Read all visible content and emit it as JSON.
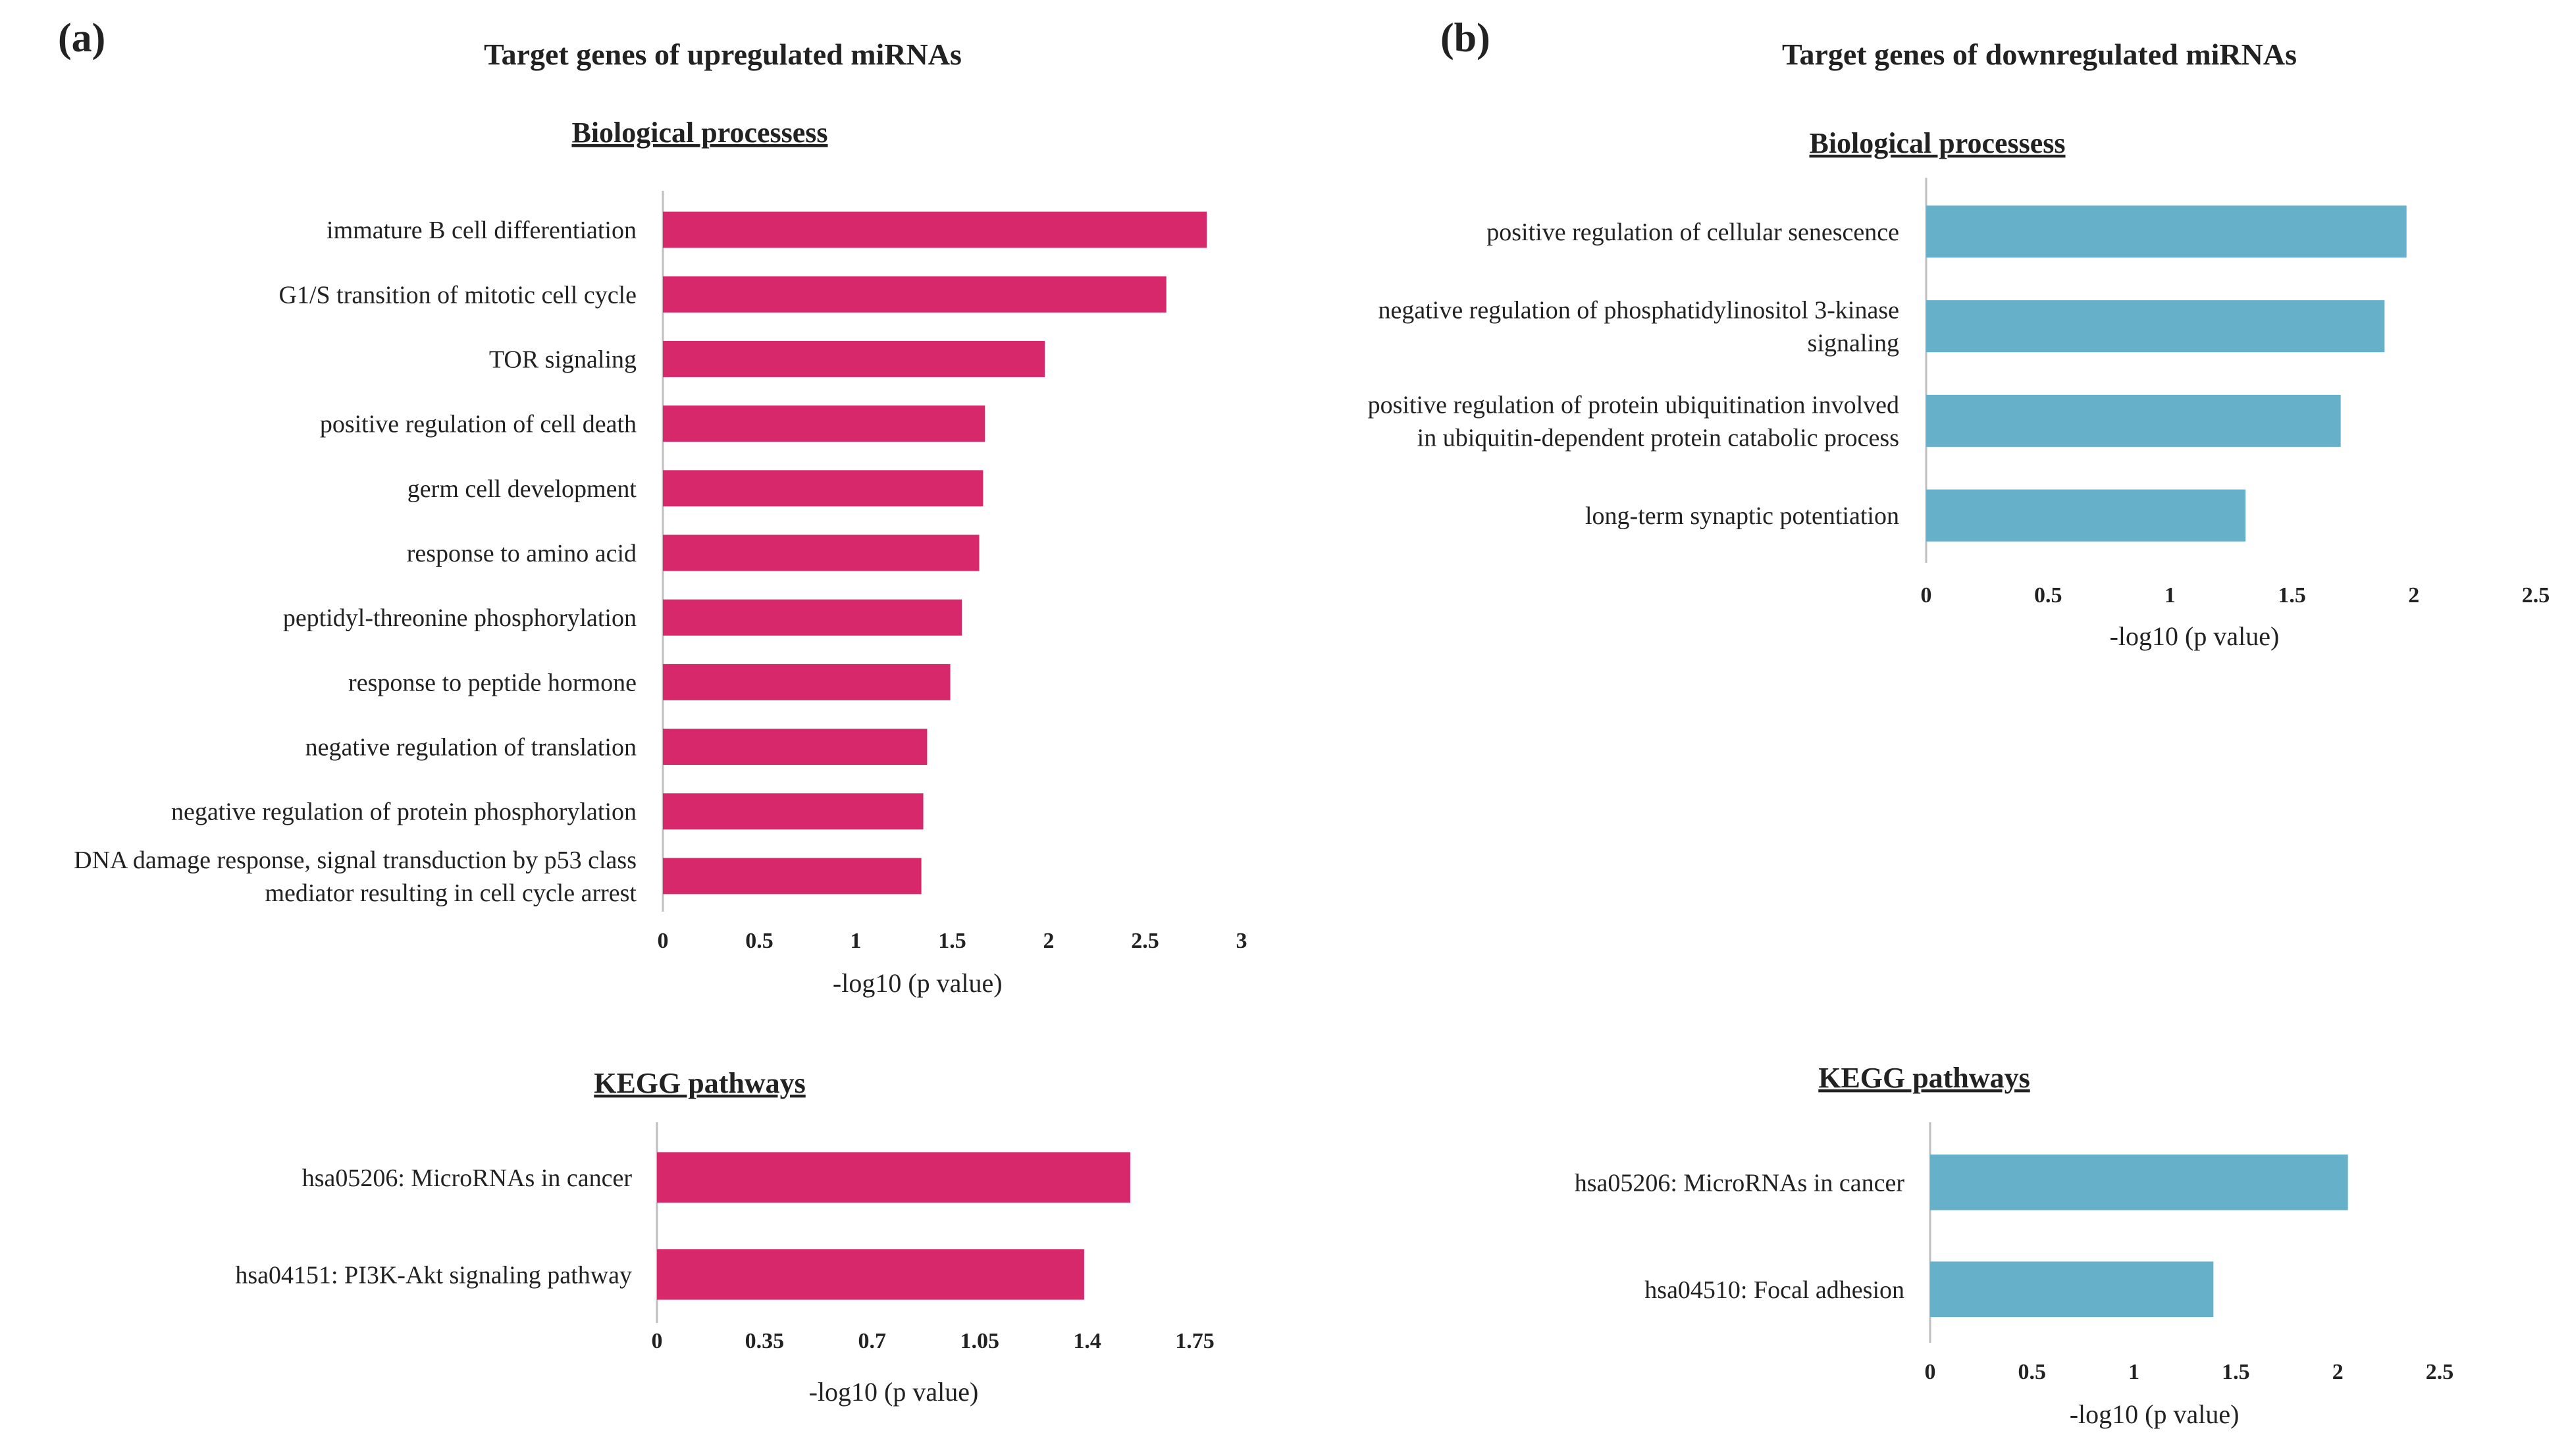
{
  "panels": [
    {
      "letter": "(a)",
      "title": "Target genes of upregulated miRNAs"
    },
    {
      "letter": "(b)",
      "title": "Target genes of downregulated miRNAs"
    }
  ],
  "colors": {
    "up": "#d6286b",
    "down": "#66b0c9",
    "axis": "#bfbfbf",
    "text": "#222222"
  },
  "chart_data": [
    {
      "id": "a_bp",
      "type": "bar",
      "orientation": "horizontal",
      "panel": "(a)",
      "title": "Biological processess",
      "xlabel": "-log10 (p value)",
      "ylabel": "",
      "xlim": [
        0,
        3
      ],
      "ticks": [
        0,
        0.5,
        1,
        1.5,
        2,
        2.5,
        3
      ],
      "tick_labels": [
        "0",
        "0.5",
        "1",
        "1.5",
        "2",
        "2.5",
        "3"
      ],
      "color": "#d6286b",
      "categories": [
        [
          "immature B cell differentiation"
        ],
        [
          "G1/S transition of mitotic cell cycle"
        ],
        [
          "TOR signaling"
        ],
        [
          "positive regulation of cell death"
        ],
        [
          "germ cell development"
        ],
        [
          "response to amino acid"
        ],
        [
          "peptidyl-threonine phosphorylation"
        ],
        [
          "response to peptide hormone"
        ],
        [
          "negative regulation of translation"
        ],
        [
          "negative regulation of protein phosphorylation"
        ],
        [
          "DNA damage response, signal transduction by p53 class",
          "mediator resulting in cell cycle arrest"
        ]
      ],
      "values": [
        2.82,
        2.61,
        1.98,
        1.67,
        1.66,
        1.64,
        1.55,
        1.49,
        1.37,
        1.35,
        1.34
      ]
    },
    {
      "id": "a_kegg",
      "type": "bar",
      "orientation": "horizontal",
      "panel": "(a)",
      "title": "KEGG pathways",
      "xlabel": "-log10 (p value)",
      "ylabel": "",
      "xlim": [
        0,
        1.75
      ],
      "ticks": [
        0,
        0.35,
        0.7,
        1.05,
        1.4,
        1.75
      ],
      "tick_labels": [
        "0",
        "0.35",
        "0.7",
        "1.05",
        "1.4",
        "1.75"
      ],
      "color": "#d6286b",
      "categories": [
        [
          "hsa05206: MicroRNAs in cancer"
        ],
        [
          "hsa04151: PI3K-Akt signaling pathway"
        ]
      ],
      "values": [
        1.54,
        1.39
      ]
    },
    {
      "id": "b_bp",
      "type": "bar",
      "orientation": "horizontal",
      "panel": "(b)",
      "title": "Biological processess",
      "xlabel": "-log10 (p value)",
      "ylabel": "",
      "xlim": [
        0,
        2.5
      ],
      "ticks": [
        0,
        0.5,
        1,
        1.5,
        2,
        2.5
      ],
      "tick_labels": [
        "0",
        "0.5",
        "1",
        "1.5",
        "2",
        "2.5"
      ],
      "color": "#66b0c9",
      "categories": [
        [
          "positive regulation of cellular senescence"
        ],
        [
          "negative regulation of phosphatidylinositol 3-kinase",
          "signaling"
        ],
        [
          "positive regulation of protein ubiquitination involved",
          "in ubiquitin-dependent protein catabolic process"
        ],
        [
          "long-term synaptic potentiation"
        ]
      ],
      "values": [
        1.97,
        1.88,
        1.7,
        1.31
      ]
    },
    {
      "id": "b_kegg",
      "type": "bar",
      "orientation": "horizontal",
      "panel": "(b)",
      "title": "KEGG pathways",
      "xlabel": "-log10 (p value)",
      "ylabel": "",
      "xlim": [
        0,
        2.5
      ],
      "ticks": [
        0,
        0.5,
        1,
        1.5,
        2,
        2.5
      ],
      "tick_labels": [
        "0",
        "0.5",
        "1",
        "1.5",
        "2",
        "2.5"
      ],
      "color": "#66b0c9",
      "categories": [
        [
          "hsa05206: MicroRNAs in cancer"
        ],
        [
          "hsa04510: Focal adhesion"
        ]
      ],
      "values": [
        2.05,
        1.39
      ]
    }
  ]
}
